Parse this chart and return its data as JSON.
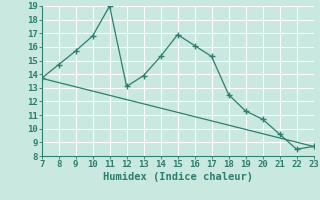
{
  "x": [
    7,
    8,
    9,
    10,
    11,
    12,
    13,
    14,
    15,
    16,
    17,
    18,
    19,
    20,
    21,
    22,
    23
  ],
  "y": [
    13.7,
    14.7,
    15.7,
    16.8,
    19.0,
    13.1,
    13.9,
    15.3,
    16.9,
    16.1,
    15.3,
    12.5,
    11.3,
    10.7,
    9.6,
    8.5,
    8.7
  ],
  "trend_x": [
    7,
    23
  ],
  "trend_y": [
    13.7,
    8.7
  ],
  "line_color": "#2e7d6e",
  "bg_color": "#c8e8e0",
  "grid_color": "#ffffff",
  "xlabel": "Humidex (Indice chaleur)",
  "xlim": [
    7,
    23
  ],
  "ylim": [
    8,
    19
  ],
  "xticks": [
    7,
    8,
    9,
    10,
    11,
    12,
    13,
    14,
    15,
    16,
    17,
    18,
    19,
    20,
    21,
    22,
    23
  ],
  "yticks": [
    8,
    9,
    10,
    11,
    12,
    13,
    14,
    15,
    16,
    17,
    18,
    19
  ],
  "tick_color": "#2e7d6e",
  "label_fontsize": 6.5,
  "xlabel_fontsize": 7.5
}
